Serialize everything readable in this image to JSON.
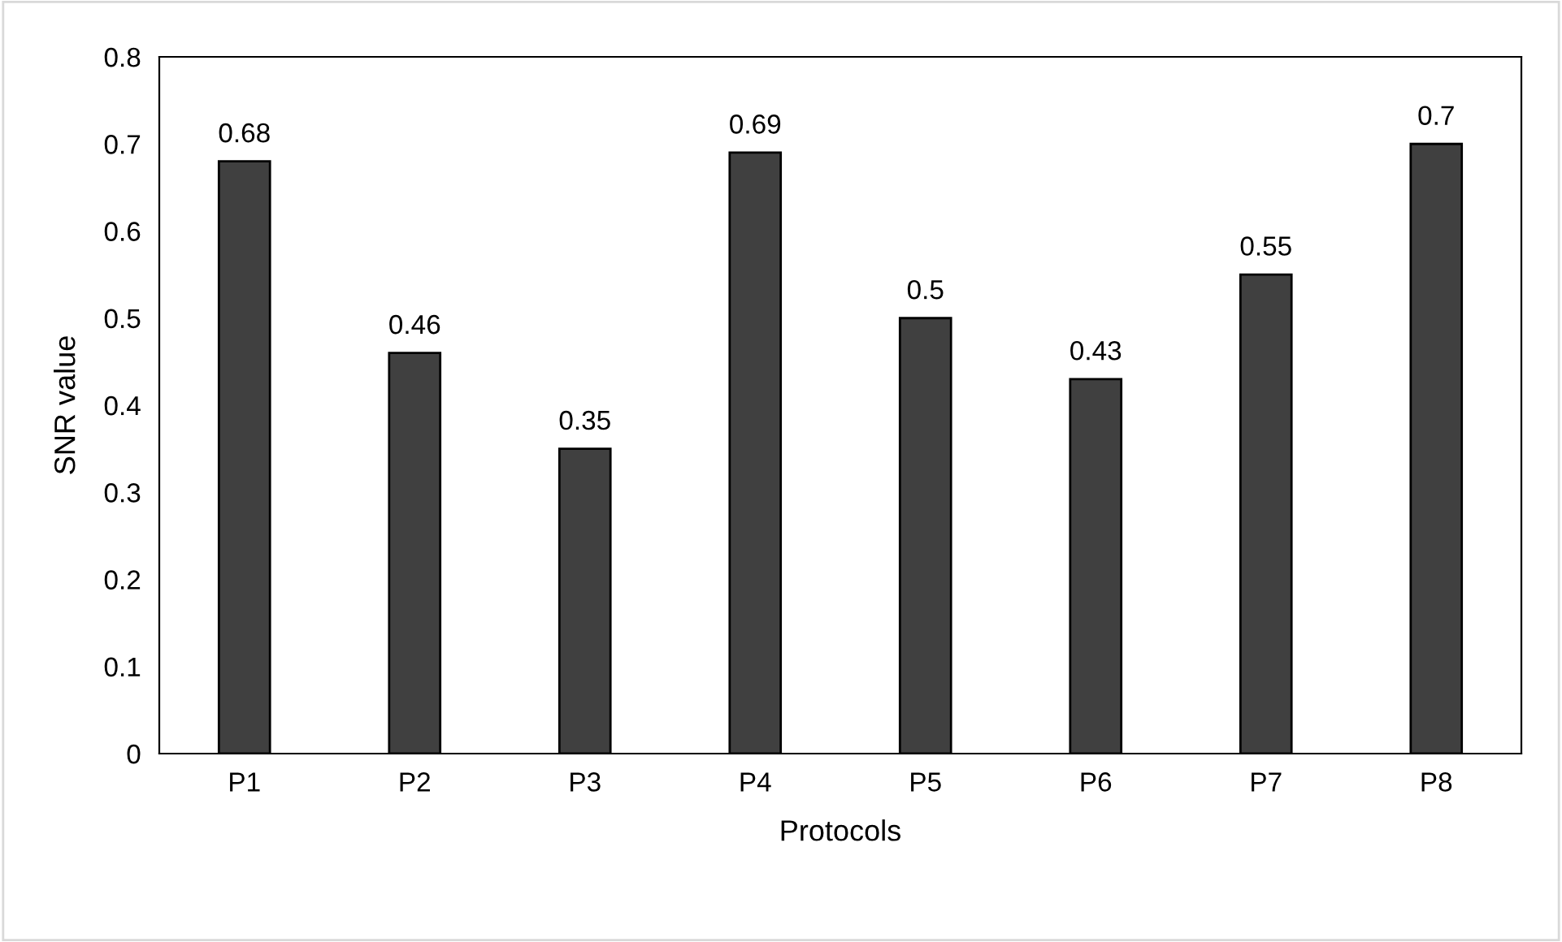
{
  "chart_data": {
    "type": "bar",
    "xlabel": "Protocols",
    "ylabel": "SNR value",
    "categories": [
      "P1",
      "P2",
      "P3",
      "P4",
      "P5",
      "P6",
      "P7",
      "P8"
    ],
    "values": [
      0.68,
      0.46,
      0.35,
      0.69,
      0.5,
      0.43,
      0.55,
      0.7
    ],
    "color": "#404040",
    "ylim": [
      0,
      0.8
    ],
    "yticks": [
      0,
      0.1,
      0.2,
      0.3,
      0.4,
      0.5,
      0.6,
      0.7,
      0.8
    ],
    "grid": false,
    "data_labels": true
  }
}
